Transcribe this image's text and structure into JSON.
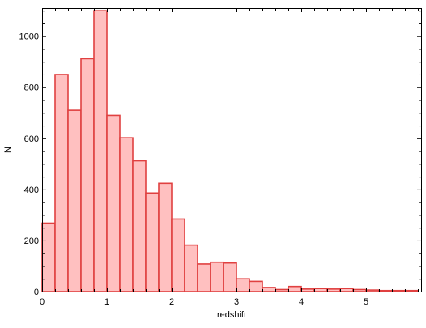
{
  "chart_data": {
    "type": "bar",
    "title": "",
    "xlabel": "redshift",
    "ylabel": "N",
    "xlim": [
      0,
      5.85
    ],
    "ylim": [
      0,
      1110
    ],
    "bin_width": 0.2,
    "bin_starts": [
      0,
      0.2,
      0.4,
      0.6,
      0.8,
      1.0,
      1.2,
      1.4,
      1.6,
      1.8,
      2.0,
      2.2,
      2.4,
      2.6,
      2.8,
      3.0,
      3.2,
      3.4,
      3.6,
      3.8,
      4.0,
      4.2,
      4.4,
      4.6,
      4.8,
      5.0,
      5.2,
      5.4,
      5.6
    ],
    "values": [
      268,
      850,
      710,
      912,
      1100,
      690,
      602,
      512,
      386,
      424,
      284,
      182,
      108,
      115,
      112,
      50,
      40,
      16,
      8,
      20,
      10,
      12,
      10,
      12,
      8,
      6,
      4,
      4,
      4
    ],
    "x_ticks": [
      0,
      1,
      2,
      3,
      4,
      5
    ],
    "x_tick_labels": [
      "0",
      "1",
      "2",
      "3",
      "4",
      "5"
    ],
    "y_ticks": [
      0,
      200,
      400,
      600,
      800,
      1000
    ],
    "y_tick_labels": [
      "0",
      "200",
      "400",
      "600",
      "800",
      "1000"
    ],
    "bar_fill": "#ffc0c0",
    "bar_stroke": "#e04040",
    "grid": false,
    "legend": false
  }
}
